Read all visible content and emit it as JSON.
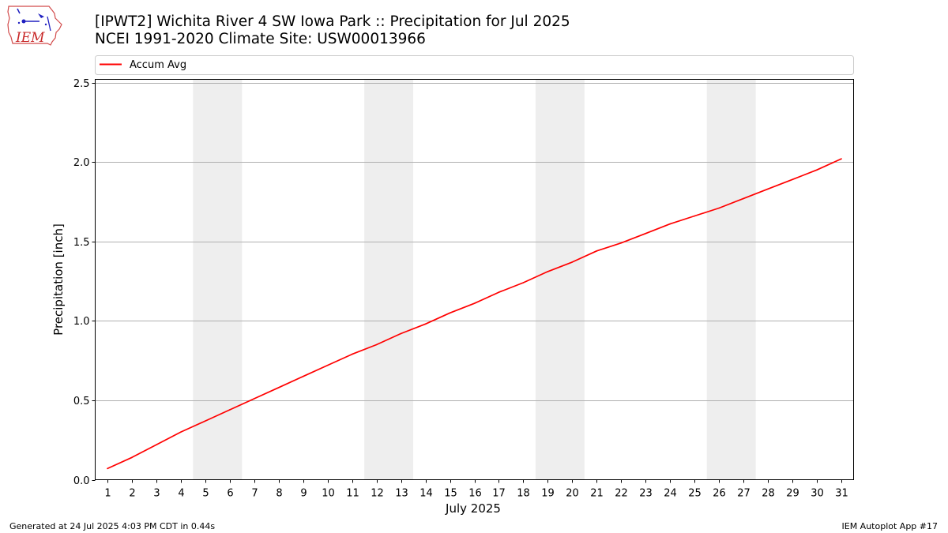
{
  "header": {
    "title_line1": "[IPWT2] Wichita River 4 SW Iowa Park :: Precipitation for Jul 2025",
    "title_line2": "NCEI 1991-2020 Climate Site: USW00013966",
    "logo_text": "IEM"
  },
  "footer": {
    "generated": "Generated at 24 Jul 2025 4:03 PM CDT in 0.44s",
    "app": "IEM Autoplot App #17"
  },
  "chart_data": {
    "type": "line",
    "xlabel": "July 2025",
    "ylabel": "Precipitation [inch]",
    "ylim": [
      0,
      2.52
    ],
    "xlim": [
      0.5,
      31.5
    ],
    "yticks": [
      0.0,
      0.5,
      1.0,
      1.5,
      2.0,
      2.5
    ],
    "y_tick_labels": [
      "0.0",
      "0.5",
      "1.0",
      "1.5",
      "2.0",
      "2.5"
    ],
    "categories": [
      1,
      2,
      3,
      4,
      5,
      6,
      7,
      8,
      9,
      10,
      11,
      12,
      13,
      14,
      15,
      16,
      17,
      18,
      19,
      20,
      21,
      22,
      23,
      24,
      25,
      26,
      27,
      28,
      29,
      30,
      31
    ],
    "category_labels": [
      "1",
      "2",
      "3",
      "4",
      "5",
      "6",
      "7",
      "8",
      "9",
      "10",
      "11",
      "12",
      "13",
      "14",
      "15",
      "16",
      "17",
      "18",
      "19",
      "20",
      "21",
      "22",
      "23",
      "24",
      "25",
      "26",
      "27",
      "28",
      "29",
      "30",
      "31"
    ],
    "weekend_bands": [
      [
        5,
        6
      ],
      [
        12,
        13
      ],
      [
        19,
        20
      ],
      [
        26,
        27
      ]
    ],
    "grid": "horizontal",
    "legend": {
      "placement": "top-left",
      "entries": [
        "Accum Avg"
      ]
    },
    "series": [
      {
        "name": "Accum Avg",
        "color": "#ff0000",
        "values": [
          0.07,
          0.14,
          0.22,
          0.3,
          0.37,
          0.44,
          0.51,
          0.58,
          0.65,
          0.72,
          0.79,
          0.85,
          0.92,
          0.98,
          1.05,
          1.11,
          1.18,
          1.24,
          1.31,
          1.37,
          1.44,
          1.49,
          1.55,
          1.61,
          1.66,
          1.71,
          1.77,
          1.83,
          1.89,
          1.95,
          2.02
        ]
      }
    ],
    "colors": {
      "band": "#eeeeee",
      "grid": "#b0b0b0"
    }
  }
}
